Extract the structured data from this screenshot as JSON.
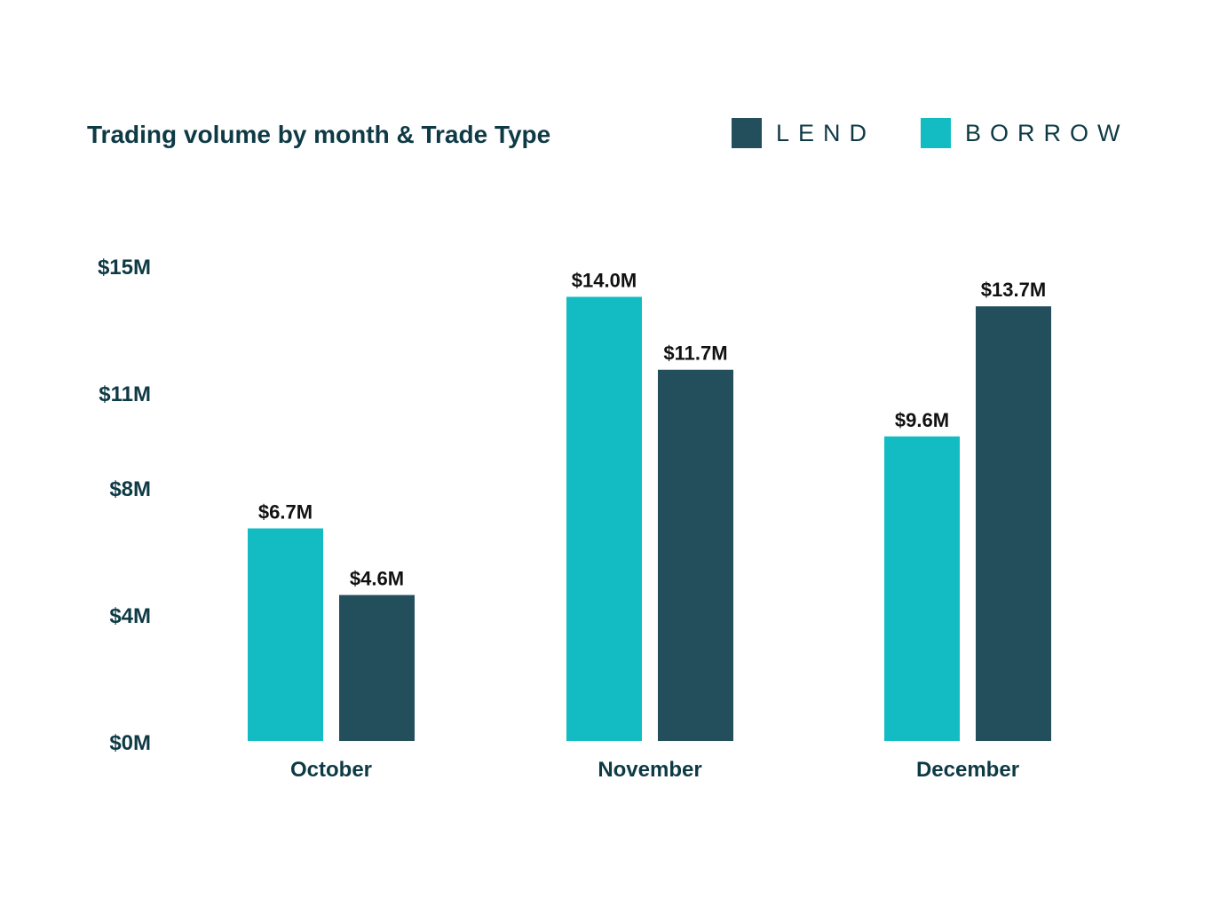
{
  "chart_data": {
    "type": "bar",
    "title": "Trading volume by month & Trade Type",
    "categories": [
      "October",
      "November",
      "December"
    ],
    "series": [
      {
        "name": "BORROW",
        "color": "#13bcc3",
        "values": [
          6.7,
          14.0,
          9.6
        ],
        "labels": [
          "$6.7M",
          "$14.0M",
          "$9.6M"
        ]
      },
      {
        "name": "LEND",
        "color": "#234e5b",
        "values": [
          4.6,
          11.7,
          13.7
        ],
        "labels": [
          "$4.6M",
          "$11.7M",
          "$13.7M"
        ]
      }
    ],
    "legend_order": [
      "LEND",
      "BORROW"
    ],
    "legend_position": "top-right",
    "y_ticks": [
      {
        "value": 0,
        "label": "$0M"
      },
      {
        "value": 4,
        "label": "$4M"
      },
      {
        "value": 8,
        "label": "$8M"
      },
      {
        "value": 11,
        "label": "$11M"
      },
      {
        "value": 15,
        "label": "$15M"
      }
    ],
    "ylim": [
      0,
      15
    ],
    "grid": false,
    "xlabel": "",
    "ylabel": ""
  }
}
